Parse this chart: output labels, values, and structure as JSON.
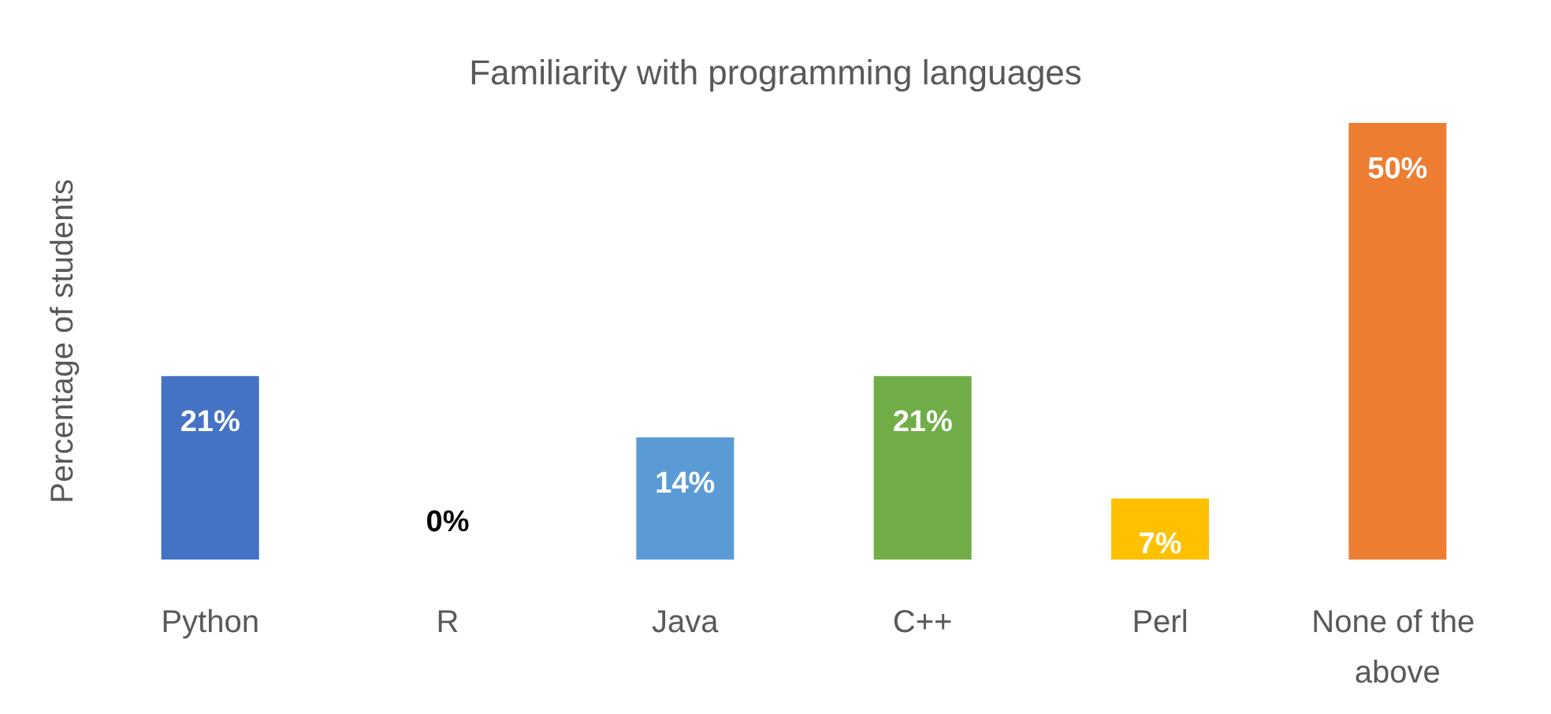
{
  "chart_data": {
    "type": "bar",
    "title": "Familiarity with programming languages",
    "ylabel": "Percentage of students",
    "categories": [
      "Python",
      "R",
      "Java",
      "C++",
      "Perl",
      "None of the above"
    ],
    "values": [
      21,
      0,
      14,
      21,
      7,
      50
    ],
    "colors": [
      "#4472c4",
      "#4472c4",
      "#5b9bd5",
      "#70ad47",
      "#ffc000",
      "#ed7d31"
    ],
    "value_labels": [
      "21%",
      "0%",
      "14%",
      "21%",
      "7%",
      "50%"
    ]
  }
}
